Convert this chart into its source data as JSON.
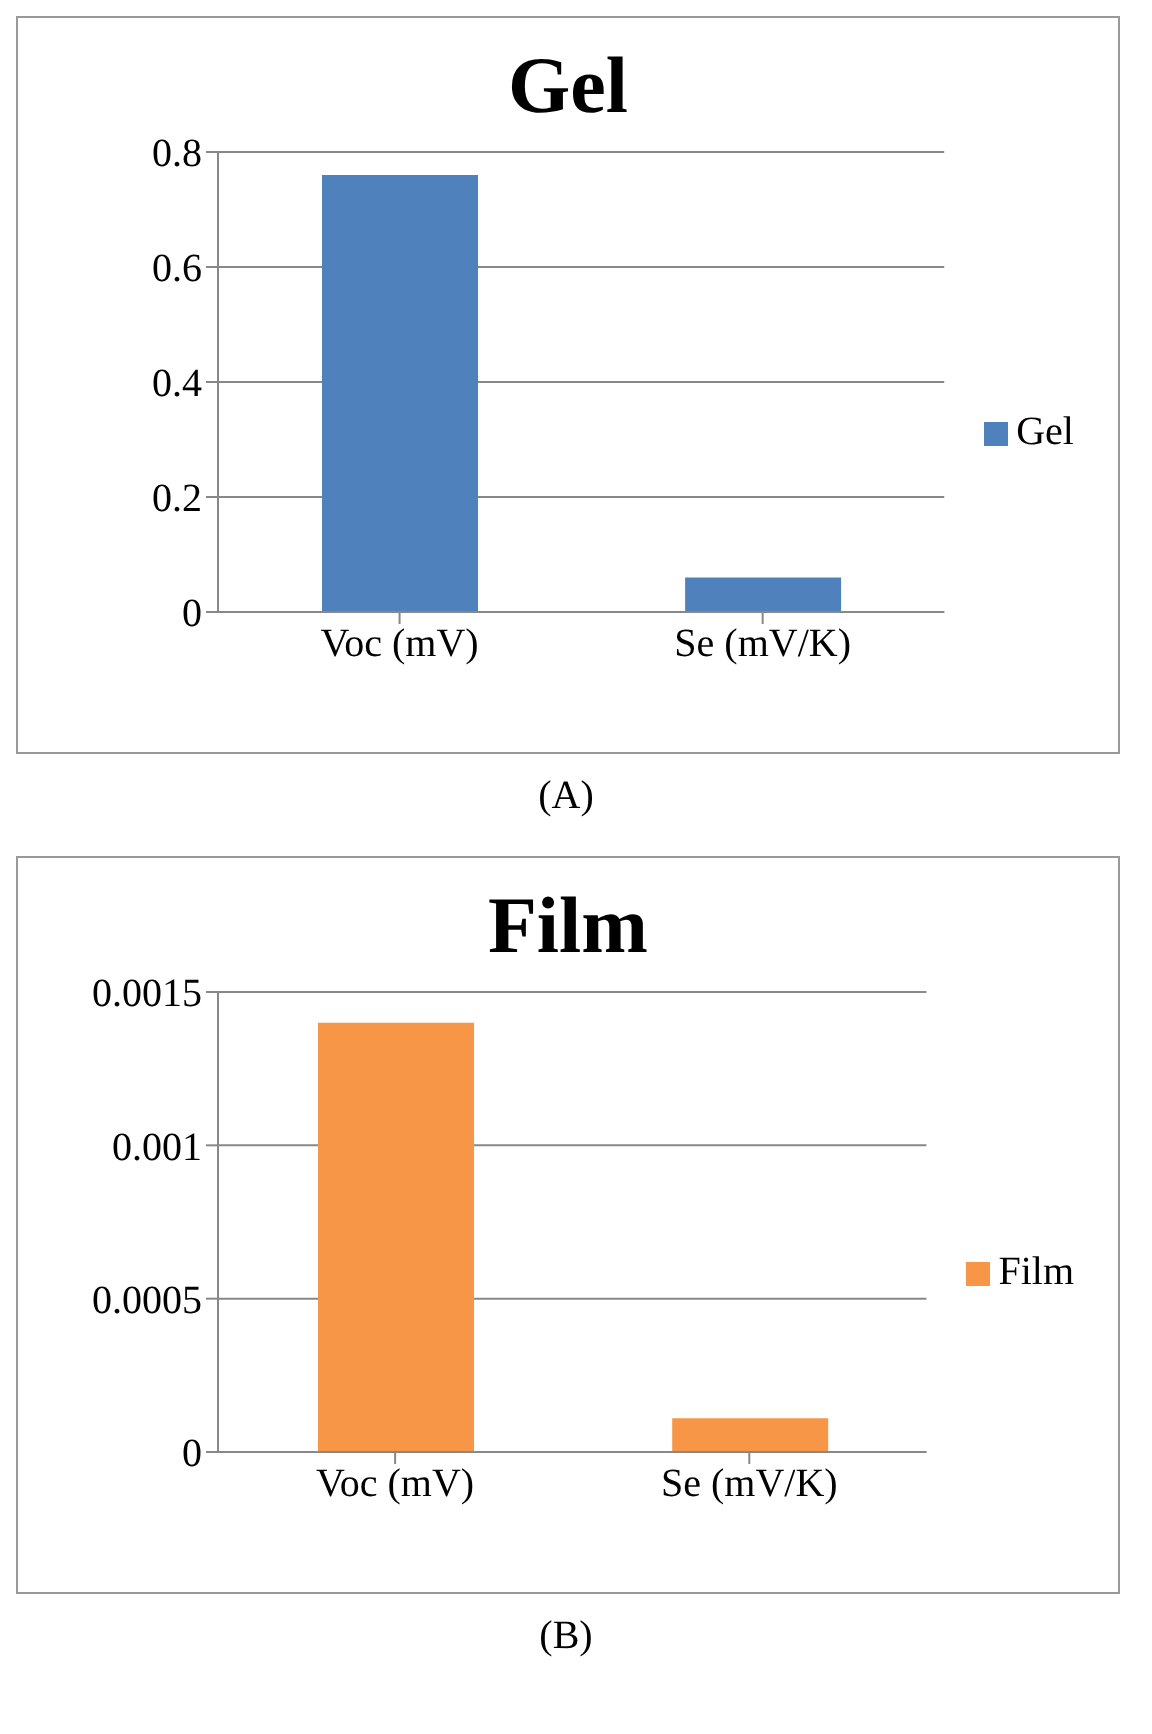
{
  "chart_data": [
    {
      "type": "bar",
      "title": "Gel",
      "categories": [
        "Voc (mV)",
        "Se (mV/K)"
      ],
      "series": [
        {
          "name": "Gel",
          "color": "#4f81bd",
          "values": [
            0.76,
            0.06
          ]
        }
      ],
      "ylim": [
        0,
        0.8
      ],
      "yticks": [
        {
          "value": 0,
          "label": "0"
        },
        0.2,
        0.4,
        0.6,
        0.8
      ],
      "grid": "y",
      "legend": "right",
      "annotations": [
        "(A)"
      ]
    },
    {
      "type": "bar",
      "title": "Film",
      "categories": [
        "Voc (mV)",
        "Se (mV/K)"
      ],
      "series": [
        {
          "name": "Film",
          "color": "#f79646",
          "values": [
            0.0014,
            0.00011
          ]
        }
      ],
      "ylim": [
        0,
        0.0015
      ],
      "yticks": [
        0,
        0.0005,
        0.001,
        0.0015
      ],
      "grid": "y",
      "legend": "right",
      "annotations": [
        "(B)"
      ]
    }
  ]
}
